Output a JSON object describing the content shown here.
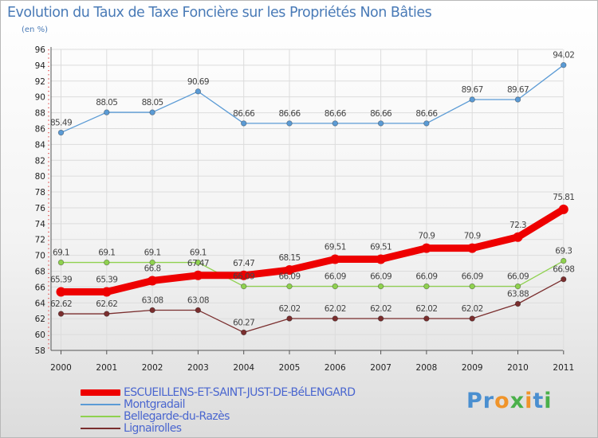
{
  "chart_data": {
    "type": "line",
    "title": "Evolution du Taux de Taxe Foncière sur les Propriétés Non Bâties",
    "subtitle": "(en %)",
    "xlabel": "",
    "ylabel": "(en %)",
    "categories": [
      "2000",
      "2001",
      "2002",
      "2003",
      "2004",
      "2005",
      "2006",
      "2007",
      "2008",
      "2009",
      "2010",
      "2011"
    ],
    "ylim": [
      58,
      96
    ],
    "yticks": [
      58,
      60,
      62,
      64,
      66,
      68,
      70,
      72,
      74,
      76,
      78,
      80,
      82,
      84,
      86,
      88,
      90,
      92,
      94,
      96
    ],
    "grid": true,
    "series": [
      {
        "name": "Montgradail",
        "color": "#5b9bd5",
        "values": [
          85.49,
          88.05,
          88.05,
          90.69,
          86.66,
          86.66,
          86.66,
          86.66,
          86.66,
          89.67,
          89.67,
          94.02
        ],
        "labels": [
          "85.49",
          "88.05",
          "88.05",
          "90.69",
          "86.66",
          "86.66",
          "86.66",
          "86.66",
          "86.66",
          "89.67",
          "89.67",
          "94.02"
        ]
      },
      {
        "name": "Bellegarde-du-Razès",
        "color": "#8fd14f",
        "values": [
          69.1,
          69.1,
          69.1,
          69.1,
          66.09,
          66.09,
          66.09,
          66.09,
          66.09,
          66.09,
          66.09,
          69.3
        ],
        "labels": [
          "69.1",
          "69.1",
          "69.1",
          "69.1",
          "66.09",
          "66.09",
          "66.09",
          "66.09",
          "66.09",
          "66.09",
          "66.09",
          "69.3"
        ]
      },
      {
        "name": "Lignairolles",
        "color": "#7a2e2e",
        "values": [
          62.62,
          62.62,
          63.08,
          63.08,
          60.27,
          62.02,
          62.02,
          62.02,
          62.02,
          62.02,
          63.88,
          66.98
        ],
        "labels": [
          "62.62",
          "62.62",
          "63.08",
          "63.08",
          "60.27",
          "62.02",
          "62.02",
          "62.02",
          "62.02",
          "62.02",
          "63.88",
          "66.98"
        ]
      },
      {
        "name": "ESCUEILLENS-ET-SAINT-JUST-DE-BéLENGARD",
        "color": "#ee0000",
        "values": [
          65.39,
          65.39,
          66.8,
          67.47,
          67.47,
          68.15,
          69.51,
          69.51,
          70.9,
          70.9,
          72.3,
          75.81
        ],
        "labels": [
          "65.39",
          "65.39",
          "66.8",
          "67.47",
          "67.47",
          "68.15",
          "69.51",
          "69.51",
          "70.9",
          "70.9",
          "72.3",
          "75.81"
        ]
      }
    ],
    "legend": [
      {
        "name": "ESCUEILLENS-ET-SAINT-JUST-DE-BéLENGARD",
        "color": "#ee0000"
      },
      {
        "name": "Montgradail",
        "color": "#5b9bd5"
      },
      {
        "name": "Bellegarde-du-Razès",
        "color": "#8fd14f"
      },
      {
        "name": "Lignairolles",
        "color": "#7a2e2e"
      }
    ],
    "legend_position": "bottom-left"
  },
  "logo": {
    "text": "Proxiti",
    "colors": [
      "#4a8fd0",
      "#f0942a",
      "#4ab04a"
    ]
  }
}
